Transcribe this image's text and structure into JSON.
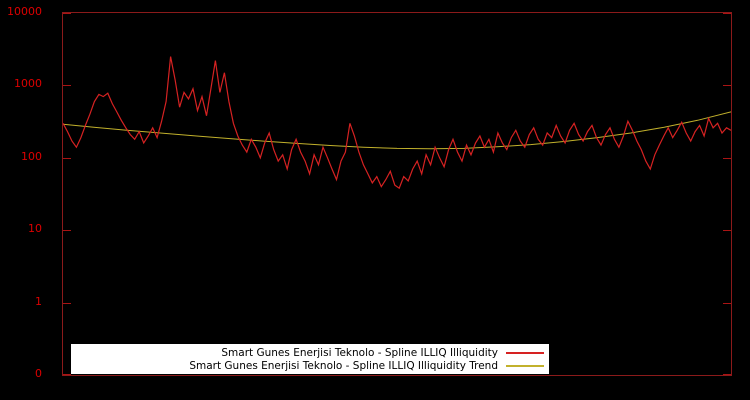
{
  "chart_data": {
    "type": "line",
    "title": "",
    "xlabel": "",
    "ylabel": "",
    "y_scale": "log",
    "ylim": [
      0.1,
      10000
    ],
    "x_ticks": [],
    "y_ticks": [
      {
        "label": "10000",
        "value": 10000
      },
      {
        "label": "1000",
        "value": 1000
      },
      {
        "label": "100",
        "value": 100
      },
      {
        "label": "10",
        "value": 10
      },
      {
        "label": "1",
        "value": 1
      },
      {
        "label": "0",
        "value": 0.1
      }
    ],
    "background": "#000000",
    "frame_color": "#8b1a1a",
    "tick_label_color": "#dd0000",
    "legend": {
      "position": "bottom-left-inside",
      "background": "#ffffff"
    },
    "series": [
      {
        "name": "Smart Gunes Enerjisi Teknolo - Spline ILLIQ Illiquidity",
        "color": "#d62222",
        "values": [
          300,
          230,
          170,
          140,
          190,
          280,
          400,
          600,
          750,
          700,
          780,
          560,
          430,
          330,
          260,
          210,
          180,
          230,
          160,
          200,
          260,
          190,
          320,
          600,
          2500,
          1200,
          500,
          800,
          650,
          900,
          450,
          700,
          380,
          900,
          2200,
          800,
          1500,
          600,
          300,
          200,
          150,
          120,
          180,
          140,
          100,
          160,
          220,
          130,
          90,
          110,
          70,
          130,
          180,
          120,
          90,
          60,
          110,
          80,
          140,
          100,
          70,
          50,
          90,
          120,
          300,
          200,
          120,
          80,
          60,
          45,
          55,
          40,
          50,
          65,
          42,
          38,
          55,
          48,
          70,
          90,
          60,
          110,
          80,
          140,
          100,
          75,
          130,
          180,
          120,
          90,
          150,
          110,
          160,
          200,
          140,
          180,
          120,
          220,
          160,
          130,
          190,
          240,
          170,
          140,
          210,
          260,
          180,
          150,
          220,
          190,
          280,
          200,
          160,
          240,
          300,
          210,
          170,
          230,
          280,
          190,
          150,
          210,
          260,
          180,
          140,
          200,
          320,
          240,
          170,
          130,
          90,
          70,
          110,
          150,
          200,
          260,
          190,
          240,
          310,
          220,
          170,
          230,
          280,
          200,
          350,
          260,
          300,
          220,
          260,
          240
        ]
      },
      {
        "name": "Smart Gunes Enerjisi Teknolo - Spline ILLIQ Illiquidity Trend",
        "color": "#c2b12c",
        "values": [
          290,
          262,
          238,
          218,
          200,
          184,
          170,
          158,
          148,
          140,
          135,
          133,
          135,
          142,
          152,
          168,
          190,
          220,
          265,
          330,
          430
        ]
      }
    ]
  }
}
